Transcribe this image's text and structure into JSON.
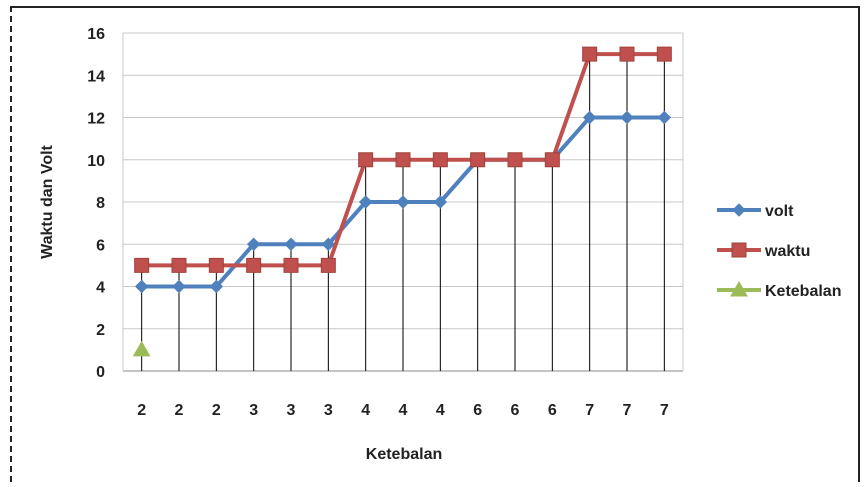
{
  "chart_data": {
    "type": "line",
    "title": "",
    "xlabel": "Ketebalan",
    "ylabel": "Waktu dan Volt",
    "categories": [
      "2",
      "2",
      "2",
      "3",
      "3",
      "3",
      "4",
      "4",
      "4",
      "6",
      "6",
      "6",
      "7",
      "7",
      "7"
    ],
    "ylim": [
      0,
      16
    ],
    "yticks": [
      0,
      2,
      4,
      6,
      8,
      10,
      12,
      14,
      16
    ],
    "grid": true,
    "legend_position": "right",
    "series": [
      {
        "name": "volt",
        "color": "#4F81BD",
        "marker": "diamond",
        "values": [
          4,
          4,
          4,
          6,
          6,
          6,
          8,
          8,
          8,
          10,
          10,
          10,
          12,
          12,
          12
        ]
      },
      {
        "name": "waktu",
        "color": "#C0504D",
        "marker": "square",
        "values": [
          5,
          5,
          5,
          5,
          5,
          5,
          10,
          10,
          10,
          10,
          10,
          10,
          15,
          15,
          15
        ]
      },
      {
        "name": "Ketebalan",
        "color": "#9BBB59",
        "marker": "triangle",
        "values": [
          1,
          null,
          null,
          null,
          null,
          null,
          null,
          null,
          null,
          null,
          null,
          null,
          null,
          null,
          null
        ]
      }
    ]
  }
}
